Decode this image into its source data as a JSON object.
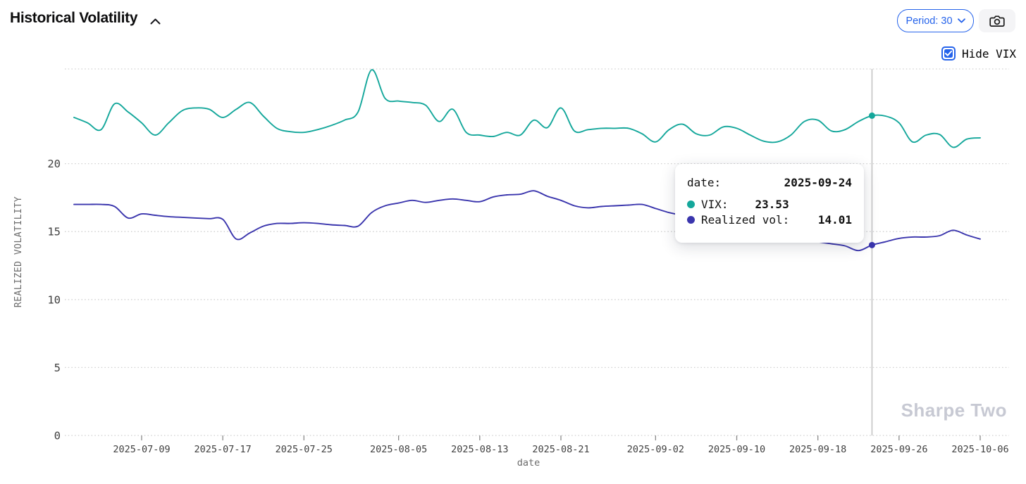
{
  "header": {
    "title": "Historical Volatility",
    "period_button_label": "Period: 30"
  },
  "controls": {
    "hide_vix_label": "Hide VIX",
    "hide_vix_checked": true
  },
  "tooltip": {
    "date_label": "date:",
    "date_value": "2025-09-24",
    "vix_label": "VIX:",
    "vix_value": "23.53",
    "rv_label": "Realized vol:",
    "rv_value": "14.01"
  },
  "watermark": "Sharpe Two",
  "colors": {
    "vix_line": "#14a79b",
    "realized_vol_line": "#3a35ad",
    "accent_blue": "#2563eb",
    "grid": "#cfcfcf",
    "crosshair": "#c4c4c4",
    "tick_text": "#3f3f3f",
    "axis_title_text": "#6b6b6b",
    "watermark_text": "#c7c9d3"
  },
  "chart_data": {
    "type": "line",
    "title": "Historical Volatility",
    "xlabel": "date",
    "ylabel": "REALIZED VOLATILITY",
    "ylim": [
      0,
      27
    ],
    "yticks": [
      0,
      5,
      10,
      15,
      20
    ],
    "grid": "horizontal-dotted",
    "legend_position": "none",
    "xticks": [
      "2025-07-09",
      "2025-07-17",
      "2025-07-25",
      "2025-08-05",
      "2025-08-13",
      "2025-08-21",
      "2025-09-02",
      "2025-09-10",
      "2025-09-18",
      "2025-09-26",
      "2025-10-06"
    ],
    "x": [
      "2025-07-01",
      "2025-07-02",
      "2025-07-03",
      "2025-07-07",
      "2025-07-08",
      "2025-07-09",
      "2025-07-10",
      "2025-07-11",
      "2025-07-14",
      "2025-07-15",
      "2025-07-16",
      "2025-07-17",
      "2025-07-18",
      "2025-07-21",
      "2025-07-22",
      "2025-07-23",
      "2025-07-24",
      "2025-07-25",
      "2025-07-28",
      "2025-07-29",
      "2025-07-30",
      "2025-07-31",
      "2025-08-01",
      "2025-08-04",
      "2025-08-05",
      "2025-08-06",
      "2025-08-07",
      "2025-08-08",
      "2025-08-11",
      "2025-08-12",
      "2025-08-13",
      "2025-08-14",
      "2025-08-15",
      "2025-08-18",
      "2025-08-19",
      "2025-08-20",
      "2025-08-21",
      "2025-08-22",
      "2025-08-25",
      "2025-08-26",
      "2025-08-27",
      "2025-08-28",
      "2025-08-29",
      "2025-09-02",
      "2025-09-03",
      "2025-09-04",
      "2025-09-05",
      "2025-09-08",
      "2025-09-09",
      "2025-09-10",
      "2025-09-11",
      "2025-09-12",
      "2025-09-15",
      "2025-09-16",
      "2025-09-17",
      "2025-09-18",
      "2025-09-19",
      "2025-09-22",
      "2025-09-23",
      "2025-09-24",
      "2025-09-25",
      "2025-09-26",
      "2025-09-29",
      "2025-09-30",
      "2025-10-01",
      "2025-10-02",
      "2025-10-03",
      "2025-10-06"
    ],
    "series": [
      {
        "name": "VIX",
        "color": "#14a79b",
        "values": [
          23.4,
          23.0,
          22.5,
          24.4,
          23.8,
          23.0,
          22.1,
          23.0,
          23.9,
          24.1,
          24.0,
          23.4,
          24.0,
          24.5,
          23.5,
          22.6,
          22.35,
          22.3,
          22.5,
          22.8,
          23.2,
          23.8,
          26.9,
          24.8,
          24.6,
          24.5,
          24.3,
          23.1,
          24.0,
          22.3,
          22.1,
          22.0,
          22.3,
          22.1,
          23.2,
          22.65,
          24.1,
          22.4,
          22.5,
          22.6,
          22.6,
          22.6,
          22.2,
          21.6,
          22.5,
          22.9,
          22.2,
          22.1,
          22.7,
          22.6,
          22.1,
          21.65,
          21.6,
          22.1,
          23.1,
          23.2,
          22.4,
          22.5,
          23.1,
          23.53,
          23.5,
          23.0,
          21.6,
          22.1,
          22.15,
          21.2,
          21.8,
          21.9
        ]
      },
      {
        "name": "Realized vol",
        "color": "#3a35ad",
        "values": [
          17.0,
          17.0,
          17.0,
          16.85,
          16.0,
          16.3,
          16.2,
          16.1,
          16.05,
          16.0,
          15.95,
          15.9,
          14.45,
          14.9,
          15.4,
          15.6,
          15.6,
          15.65,
          15.6,
          15.5,
          15.45,
          15.4,
          16.4,
          16.9,
          17.1,
          17.3,
          17.15,
          17.3,
          17.4,
          17.3,
          17.2,
          17.55,
          17.7,
          17.75,
          18.0,
          17.6,
          17.3,
          16.9,
          16.75,
          16.85,
          16.9,
          16.95,
          17.0,
          16.7,
          16.4,
          16.2,
          16.1,
          16.0,
          15.85,
          15.7,
          15.5,
          15.25,
          15.0,
          14.7,
          14.45,
          14.25,
          14.1,
          13.95,
          13.6,
          14.01,
          14.25,
          14.5,
          14.6,
          14.6,
          14.7,
          15.1,
          14.75,
          14.45
        ]
      }
    ],
    "crosshair": {
      "date": "2025-09-24",
      "vix": 23.53,
      "realized_vol": 14.01
    }
  }
}
